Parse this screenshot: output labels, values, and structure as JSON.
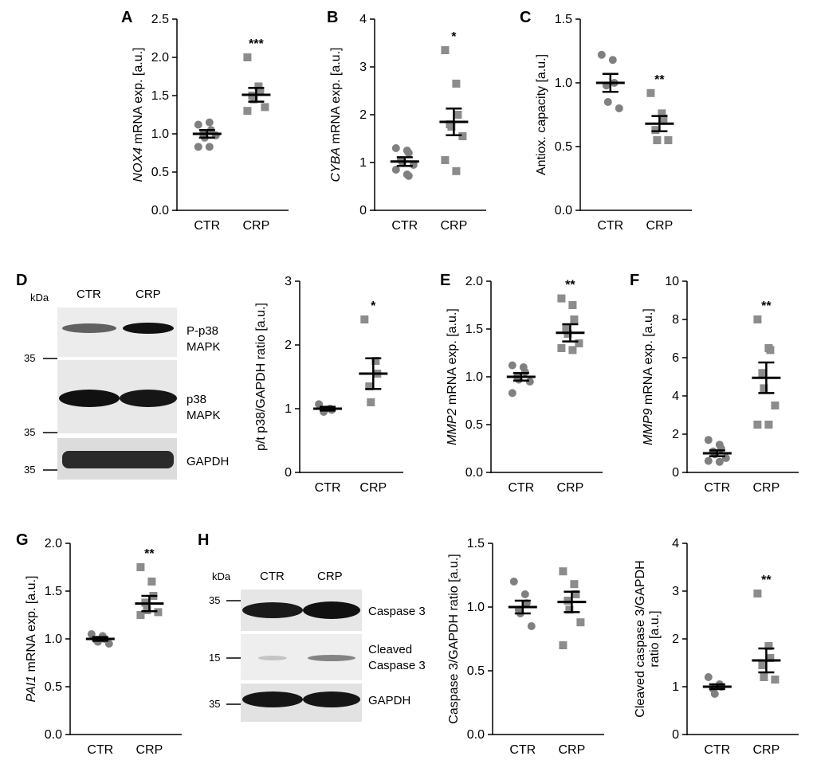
{
  "figure": {
    "charts": [
      {
        "id": "A",
        "ylabel_italic": "NOX4",
        "ylabel_rest": " mRNA exp. [a.u.]",
        "ylim": [
          0,
          2.5
        ],
        "yticks": [
          "0.0",
          "0.5",
          "1.0",
          "1.5",
          "2.0",
          "2.5"
        ],
        "categories": [
          "CTR",
          "CRP"
        ],
        "mean": [
          1.0,
          1.51
        ],
        "sem": [
          0.05,
          0.09
        ],
        "sig": "***",
        "points": [
          [
            1.12,
            1.15,
            1.05,
            1.0,
            0.95,
            0.98,
            0.83,
            0.83
          ],
          [
            2.0,
            1.62,
            1.55,
            1.5,
            1.45,
            1.35,
            1.3
          ]
        ]
      },
      {
        "id": "B",
        "ylabel_italic": "CYBA",
        "ylabel_rest": " mRNA exp. [a.u.]",
        "ylim": [
          0,
          4
        ],
        "yticks": [
          "0",
          "1",
          "2",
          "3",
          "4"
        ],
        "categories": [
          "CTR",
          "CRP"
        ],
        "mean": [
          1.02,
          1.85
        ],
        "sem": [
          0.09,
          0.28
        ],
        "sig": "*",
        "points": [
          [
            1.3,
            1.25,
            1.2,
            1.05,
            1.0,
            0.95,
            0.85,
            0.75,
            0.72
          ],
          [
            3.35,
            2.65,
            2.0,
            1.8,
            1.75,
            1.55,
            1.05,
            0.82
          ]
        ]
      },
      {
        "id": "C",
        "ylabel_italic": "",
        "ylabel_rest": "Antiox. capacity [a.u.]",
        "ylim": [
          0,
          1.5
        ],
        "yticks": [
          "0.0",
          "0.5",
          "1.0",
          "1.5"
        ],
        "categories": [
          "CTR",
          "CRP"
        ],
        "mean": [
          1.0,
          0.68
        ],
        "sem": [
          0.07,
          0.06
        ],
        "sig": "**",
        "points": [
          [
            1.22,
            1.18,
            1.0,
            0.98,
            0.85,
            0.8
          ],
          [
            0.92,
            0.76,
            0.72,
            0.63,
            0.55,
            0.55
          ]
        ]
      },
      {
        "id": "D2",
        "ylabel_italic": "",
        "ylabel_rest": "p/t p38/GAPDH ratio [a.u.]",
        "ylim": [
          0,
          3
        ],
        "yticks": [
          "0",
          "1",
          "2",
          "3"
        ],
        "categories": [
          "CTR",
          "CRP"
        ],
        "mean": [
          1.0,
          1.55
        ],
        "sem": [
          0.03,
          0.24
        ],
        "sig": "*",
        "points": [
          [
            1.07,
            1.0,
            0.98,
            0.95
          ],
          [
            2.4,
            1.75,
            1.55,
            1.35,
            1.1
          ]
        ]
      },
      {
        "id": "E",
        "ylabel_italic": "MMP2",
        "ylabel_rest": " mRNA exp. [a.u.]",
        "ylim": [
          0,
          2.0
        ],
        "yticks": [
          "0.0",
          "0.5",
          "1.0",
          "1.5",
          "2.0"
        ],
        "categories": [
          "CTR",
          "CRP"
        ],
        "mean": [
          1.0,
          1.46
        ],
        "sem": [
          0.04,
          0.09
        ],
        "sig": "**",
        "points": [
          [
            1.12,
            1.1,
            1.05,
            1.0,
            0.97,
            0.95,
            0.83
          ],
          [
            1.82,
            1.75,
            1.6,
            1.5,
            1.45,
            1.35,
            1.3,
            1.28
          ]
        ]
      },
      {
        "id": "F",
        "ylabel_italic": "MMP9",
        "ylabel_rest": " mRNA exp. [a.u.]",
        "ylim": [
          0,
          10
        ],
        "yticks": [
          "0",
          "2",
          "4",
          "6",
          "8",
          "10"
        ],
        "categories": [
          "CTR",
          "CRP"
        ],
        "mean": [
          1.0,
          4.95
        ],
        "sem": [
          0.15,
          0.8
        ],
        "sig": "**",
        "points": [
          [
            1.7,
            1.45,
            1.25,
            1.1,
            0.95,
            0.75,
            0.6,
            0.55
          ],
          [
            8.0,
            6.5,
            6.4,
            5.2,
            4.4,
            3.5,
            2.5,
            2.5
          ]
        ]
      },
      {
        "id": "G",
        "ylabel_italic": "PAI1",
        "ylabel_rest": " mRNA exp. [a.u.]",
        "ylim": [
          0,
          2.0
        ],
        "yticks": [
          "0.0",
          "0.5",
          "1.0",
          "1.5",
          "2.0"
        ],
        "categories": [
          "CTR",
          "CRP"
        ],
        "mean": [
          1.0,
          1.37
        ],
        "sem": [
          0.02,
          0.08
        ],
        "sig": "**",
        "points": [
          [
            1.05,
            1.03,
            1.0,
            0.99,
            0.97,
            0.95
          ],
          [
            1.75,
            1.6,
            1.45,
            1.38,
            1.3,
            1.28,
            1.25
          ]
        ]
      },
      {
        "id": "H2",
        "ylabel_italic": "",
        "ylabel_rest": "Caspase 3/GAPDH ratio [a.u.]",
        "ylim": [
          0,
          1.5
        ],
        "yticks": [
          "0.0",
          "0.5",
          "1.0",
          "1.5"
        ],
        "categories": [
          "CTR",
          "CRP"
        ],
        "mean": [
          1.0,
          1.04
        ],
        "sem": [
          0.05,
          0.08
        ],
        "sig": "",
        "points": [
          [
            1.2,
            1.1,
            1.03,
            0.98,
            0.95,
            0.85
          ],
          [
            1.28,
            1.18,
            1.1,
            1.05,
            0.98,
            0.88,
            0.7
          ]
        ]
      },
      {
        "id": "H3",
        "ylabel_italic": "",
        "ylabel_rest": "Cleaved caspase 3/GAPDH",
        "ylabel_line2": "ratio [a.u.]",
        "ylim": [
          0,
          4
        ],
        "yticks": [
          "0",
          "1",
          "2",
          "3",
          "4"
        ],
        "categories": [
          "CTR",
          "CRP"
        ],
        "mean": [
          1.0,
          1.55
        ],
        "sem": [
          0.05,
          0.25
        ],
        "sig": "**",
        "points": [
          [
            1.2,
            1.05,
            1.0,
            0.95,
            0.85
          ],
          [
            2.95,
            1.85,
            1.6,
            1.45,
            1.2,
            1.15
          ]
        ]
      }
    ],
    "panel_letters": [
      "A",
      "B",
      "C",
      "D",
      "E",
      "F",
      "G",
      "H"
    ],
    "blot_D": {
      "kda": "kDa",
      "lanes": [
        "CTR",
        "CRP"
      ],
      "markers": [
        "35",
        "35",
        "35"
      ],
      "labels": [
        "P-p38",
        "MAPK",
        "p38",
        "MAPK",
        "GAPDH"
      ]
    },
    "blot_H": {
      "kda": "kDa",
      "lanes": [
        "CTR",
        "CRP"
      ],
      "markers": [
        "35",
        "15",
        "35"
      ],
      "labels": [
        "Caspase 3",
        "Cleaved",
        "Caspase 3",
        "GAPDH"
      ]
    },
    "colors": {
      "ctr": "#808080",
      "crp": "#8c8c8c",
      "ink": "#000000"
    }
  }
}
